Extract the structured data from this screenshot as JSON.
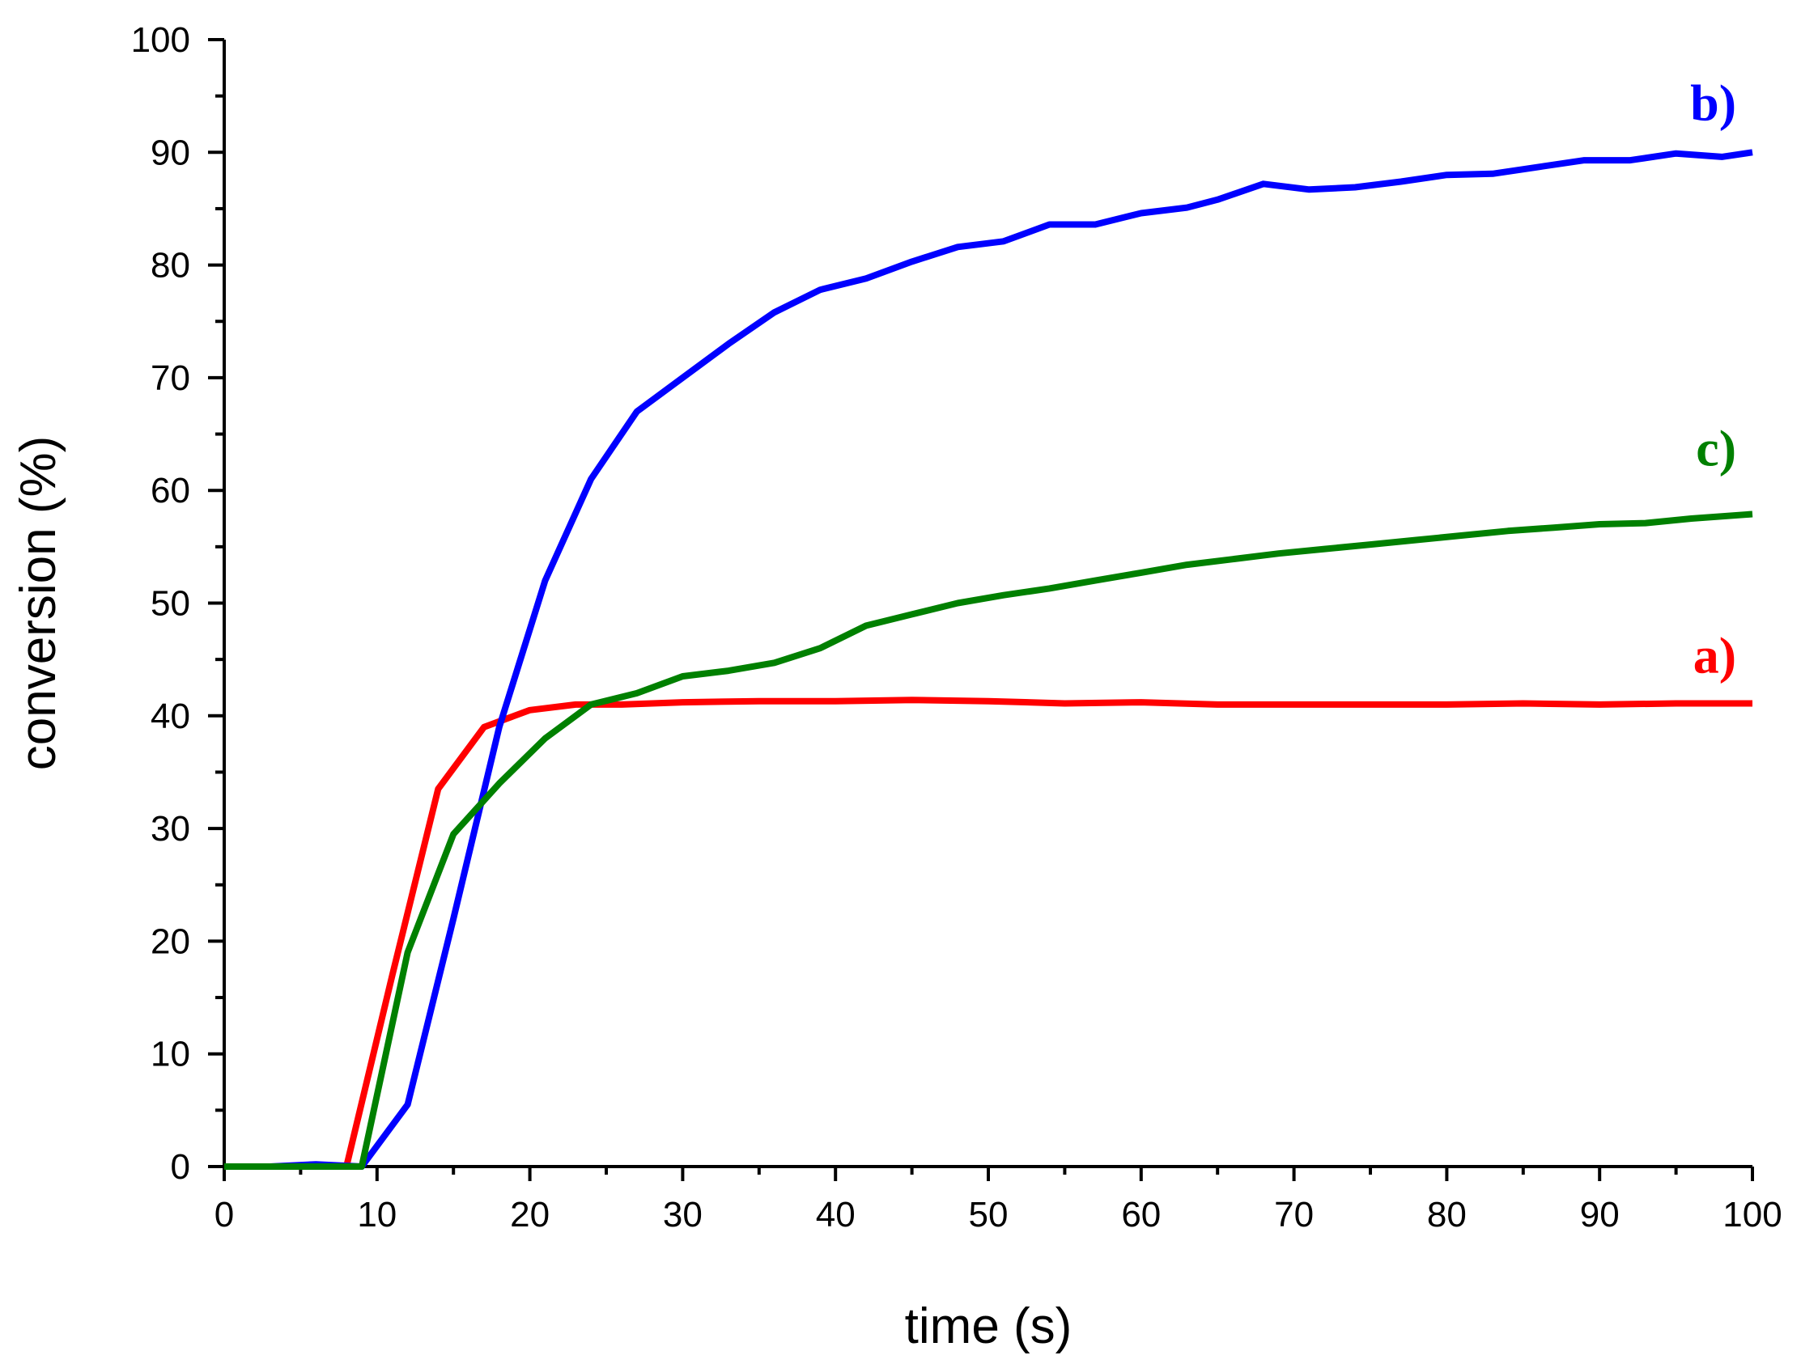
{
  "chart_data": {
    "type": "line",
    "xlabel": "time (s)",
    "ylabel": "conversion (%)",
    "xlim": [
      0,
      100
    ],
    "ylim": [
      0,
      100
    ],
    "xticks": [
      0,
      10,
      20,
      30,
      40,
      50,
      60,
      70,
      80,
      90,
      100
    ],
    "yticks": [
      0,
      10,
      20,
      30,
      40,
      50,
      60,
      70,
      80,
      90,
      100
    ],
    "grid": false,
    "series": [
      {
        "name": "a)",
        "color": "#ff0000",
        "x": [
          0,
          3,
          6,
          8,
          11,
          14,
          17,
          20,
          23,
          26,
          30,
          35,
          40,
          45,
          50,
          55,
          60,
          65,
          70,
          75,
          80,
          85,
          90,
          95,
          100
        ],
        "y": [
          0,
          0,
          0,
          0,
          17,
          33.5,
          39,
          40.5,
          41,
          41,
          41.2,
          41.3,
          41.3,
          41.4,
          41.3,
          41.1,
          41.2,
          41,
          41,
          41,
          41,
          41.1,
          41,
          41.1,
          41.1
        ]
      },
      {
        "name": "b)",
        "color": "#0000ff",
        "x": [
          0,
          3,
          6,
          9,
          12,
          15,
          18,
          21,
          24,
          27,
          30,
          33,
          36,
          39,
          42,
          45,
          48,
          51,
          54,
          57,
          60,
          63,
          65,
          68,
          71,
          74,
          77,
          80,
          83,
          86,
          89,
          92,
          95,
          98,
          100
        ],
        "y": [
          0,
          0,
          0.2,
          0,
          5.5,
          22,
          39,
          52,
          61,
          67,
          70,
          73,
          75.8,
          77.8,
          78.8,
          80.3,
          81.6,
          82.1,
          83.6,
          83.6,
          84.6,
          85.1,
          85.8,
          87.2,
          86.7,
          86.9,
          87.4,
          88,
          88.1,
          88.7,
          89.3,
          89.3,
          89.9,
          89.6,
          90
        ]
      },
      {
        "name": "c)",
        "color": "#008000",
        "x": [
          0,
          3,
          6,
          9,
          12,
          15,
          18,
          21,
          24,
          27,
          30,
          33,
          36,
          39,
          42,
          45,
          48,
          51,
          54,
          57,
          60,
          63,
          66,
          69,
          72,
          75,
          78,
          81,
          84,
          87,
          90,
          93,
          96,
          100
        ],
        "y": [
          0,
          0,
          0,
          0,
          19,
          29.5,
          34,
          38,
          41,
          42,
          43.5,
          44,
          44.7,
          46,
          48,
          49,
          50,
          50.7,
          51.3,
          52,
          52.7,
          53.4,
          53.9,
          54.4,
          54.8,
          55.2,
          55.6,
          56,
          56.4,
          56.7,
          57,
          57.1,
          57.5,
          57.9
        ]
      }
    ]
  }
}
